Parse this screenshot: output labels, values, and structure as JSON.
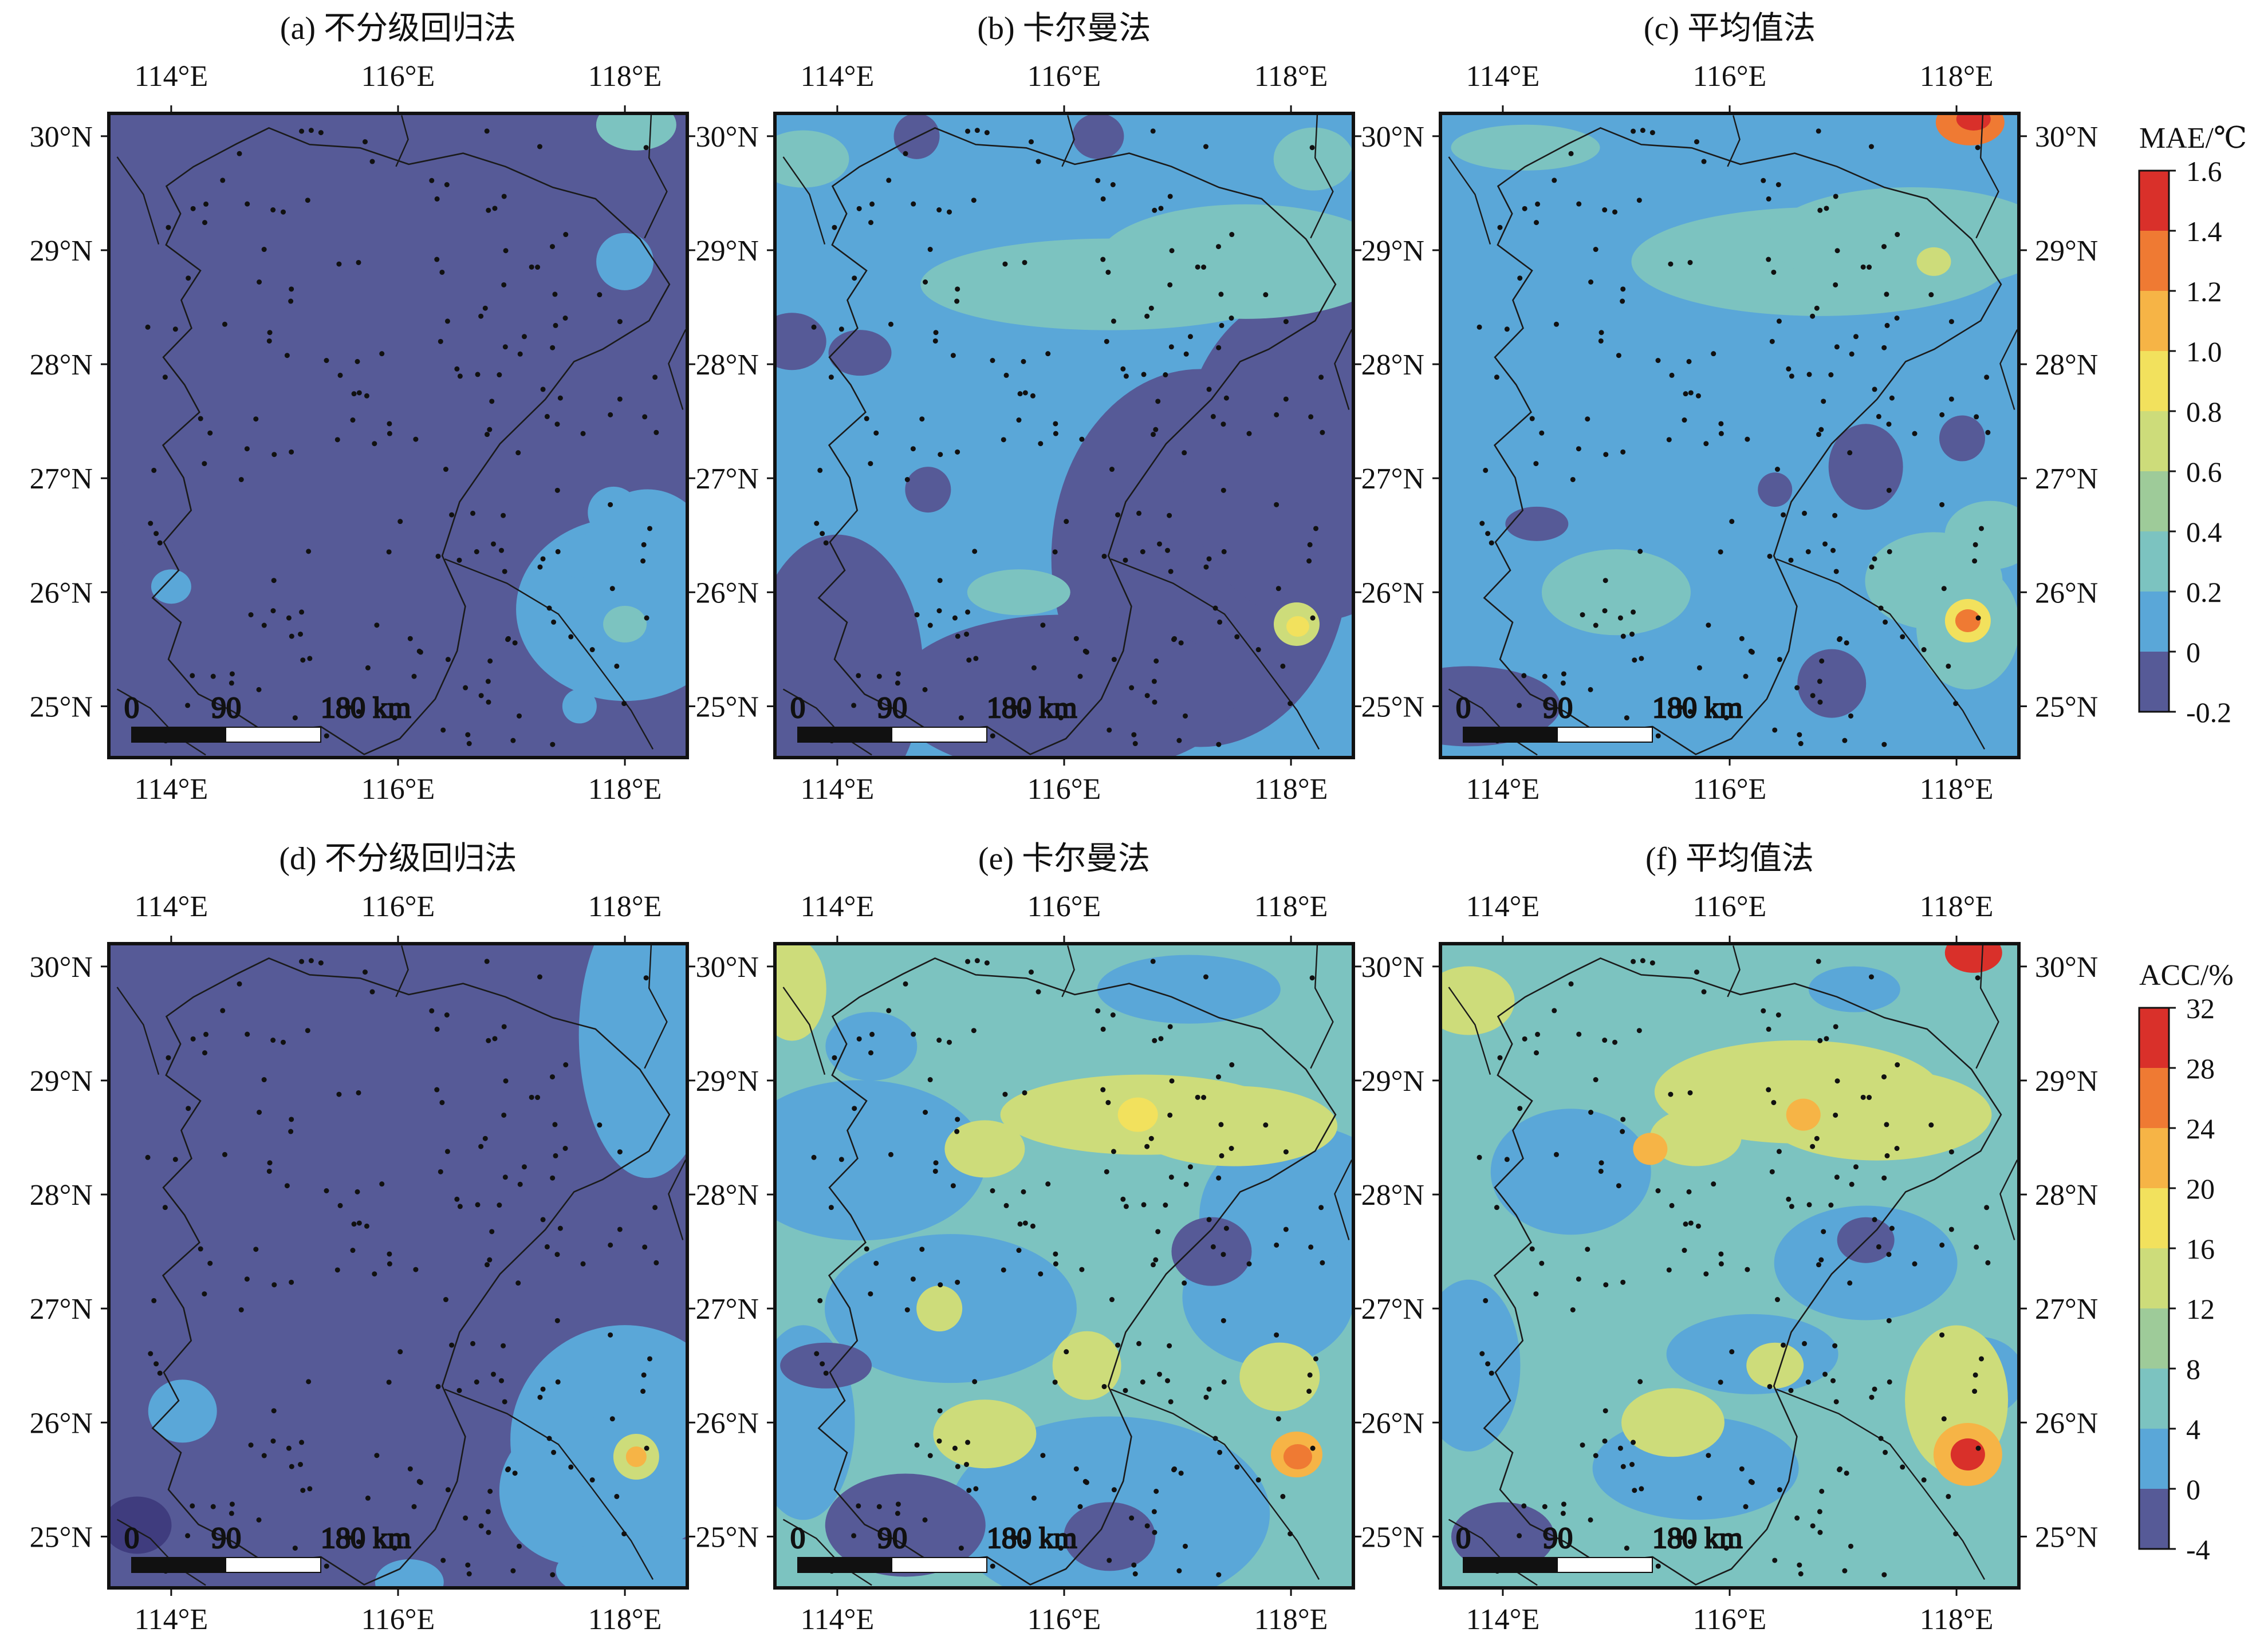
{
  "figure": {
    "panels": [
      {
        "title": "(a) 不分级回归法",
        "field": "MAE",
        "method": "不分级回归法"
      },
      {
        "title": "(b) 卡尔曼法",
        "field": "MAE",
        "method": "卡尔曼法"
      },
      {
        "title": "(c) 平均值法",
        "field": "MAE",
        "method": "平均值法"
      },
      {
        "title": "(d) 不分级回归法",
        "field": "ACC",
        "method": "不分级回归法"
      },
      {
        "title": "(e) 卡尔曼法",
        "field": "ACC",
        "method": "卡尔曼法"
      },
      {
        "title": "(f) 平均值法",
        "field": "ACC",
        "method": "平均值法"
      }
    ],
    "lon_ticks": [
      "114°E",
      "116°E",
      "118°E"
    ],
    "lat_ticks": [
      "30°N",
      "29°N",
      "28°N",
      "27°N",
      "26°N",
      "25°N"
    ],
    "scalebar": {
      "labels": [
        "0",
        "90",
        "180 km"
      ]
    },
    "colorbars": [
      {
        "title": "MAE/℃",
        "ticks": [
          "1.6",
          "1.4",
          "1.2",
          "1.0",
          "0.8",
          "0.6",
          "0.4",
          "0.2",
          "0",
          "-0.2"
        ]
      },
      {
        "title": "ACC/%",
        "ticks": [
          "32",
          "28",
          "24",
          "20",
          "16",
          "12",
          "8",
          "4",
          "0",
          "-4"
        ]
      }
    ],
    "colors": {
      "c0": "#3f3c7e",
      "c1": "#565a97",
      "c2": "#5aa7d8",
      "c3": "#7cc3c0",
      "c4": "#9ecb99",
      "c5": "#cddc7a",
      "c6": "#f2e15d",
      "c7": "#f6b446",
      "c8": "#ef7a33",
      "c9": "#d9302a"
    }
  },
  "chart_data": [
    {
      "type": "heatmap",
      "title": "(a) 不分级回归法",
      "variable": "MAE/℃",
      "xlim": [
        113.45,
        118.55
      ],
      "ylim": [
        24.55,
        30.2
      ],
      "xticks": [
        114,
        116,
        118
      ],
      "yticks": [
        25,
        26,
        27,
        28,
        29,
        30
      ],
      "colorbar_levels": [
        -0.2,
        0,
        0.2,
        0.4,
        0.6,
        0.8,
        1.0,
        1.2,
        1.4,
        1.6
      ],
      "dominant_level_range": [
        0,
        0.2
      ],
      "hotspots": [
        {
          "lon": 118.1,
          "lat": 30.1,
          "value_range": [
            0.4,
            0.6
          ]
        },
        {
          "lon": 118.0,
          "lat": 25.7,
          "value_range": [
            0.4,
            0.6
          ]
        }
      ]
    },
    {
      "type": "heatmap",
      "title": "(b) 卡尔曼法",
      "variable": "MAE/℃",
      "xlim": [
        113.45,
        118.55
      ],
      "ylim": [
        24.55,
        30.2
      ],
      "colorbar_levels": [
        -0.2,
        0,
        0.2,
        0.4,
        0.6,
        0.8,
        1.0,
        1.2,
        1.4,
        1.6
      ],
      "dominant_level_range": [
        0.2,
        0.4
      ],
      "hotspots": [
        {
          "lon": 118.05,
          "lat": 25.7,
          "value_range": [
            0.8,
            1.0
          ]
        }
      ]
    },
    {
      "type": "heatmap",
      "title": "(c) 平均值法",
      "variable": "MAE/℃",
      "xlim": [
        113.45,
        118.55
      ],
      "ylim": [
        24.55,
        30.2
      ],
      "colorbar_levels": [
        -0.2,
        0,
        0.2,
        0.4,
        0.6,
        0.8,
        1.0,
        1.2,
        1.4,
        1.6
      ],
      "dominant_level_range": [
        0.2,
        0.4
      ],
      "hotspots": [
        {
          "lon": 118.15,
          "lat": 30.15,
          "value_range": [
            1.4,
            1.6
          ]
        },
        {
          "lon": 118.1,
          "lat": 25.75,
          "value_range": [
            1.2,
            1.4
          ]
        }
      ]
    },
    {
      "type": "heatmap",
      "title": "(d) 不分级回归法",
      "variable": "ACC/%",
      "xlim": [
        113.45,
        118.55
      ],
      "ylim": [
        24.55,
        30.2
      ],
      "colorbar_levels": [
        -4,
        0,
        4,
        8,
        12,
        16,
        20,
        24,
        28,
        32
      ],
      "dominant_level_range": [
        0,
        4
      ],
      "hotspots": [
        {
          "lon": 118.1,
          "lat": 25.7,
          "value_range": [
            16,
            20
          ]
        }
      ]
    },
    {
      "type": "heatmap",
      "title": "(e) 卡尔曼法",
      "variable": "ACC/%",
      "xlim": [
        113.45,
        118.55
      ],
      "ylim": [
        24.55,
        30.2
      ],
      "colorbar_levels": [
        -4,
        0,
        4,
        8,
        12,
        16,
        20,
        24,
        28,
        32
      ],
      "dominant_level_range": [
        8,
        12
      ],
      "hotspots": [
        {
          "lon": 118.05,
          "lat": 25.7,
          "value_range": [
            24,
            28
          ]
        },
        {
          "lon": 116.65,
          "lat": 28.7,
          "value_range": [
            16,
            20
          ]
        }
      ]
    },
    {
      "type": "heatmap",
      "title": "(f) 平均值法",
      "variable": "ACC/%",
      "xlim": [
        113.45,
        118.55
      ],
      "ylim": [
        24.55,
        30.2
      ],
      "colorbar_levels": [
        -4,
        0,
        4,
        8,
        12,
        16,
        20,
        24,
        28,
        32
      ],
      "dominant_level_range": [
        8,
        12
      ],
      "hotspots": [
        {
          "lon": 118.1,
          "lat": 25.72,
          "value_range": [
            28,
            32
          ]
        },
        {
          "lon": 118.15,
          "lat": 30.12,
          "value_range": [
            28,
            32
          ]
        }
      ]
    }
  ]
}
